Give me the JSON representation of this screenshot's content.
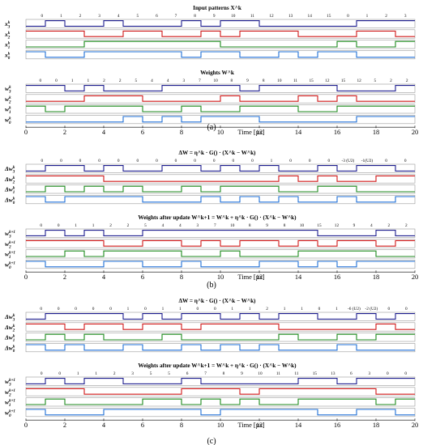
{
  "colors": {
    "b3": "#1f1f8f",
    "b2": "#d01818",
    "b1": "#1c8a1c",
    "b0": "#1f6fd6"
  },
  "x_axis": {
    "ticks": [
      "0",
      "2",
      "4",
      "6",
      "8",
      "10",
      "12",
      "14",
      "16",
      "18",
      "20"
    ],
    "unit_label": "Time [µs]",
    "range": [
      0,
      20
    ]
  },
  "panels": [
    {
      "caption": "(a)",
      "groups": [
        {
          "title": "Input patterns X^k",
          "values": [
            "0",
            "1",
            "2",
            "3",
            "4",
            "5",
            "6",
            "7",
            "8",
            "9",
            "10",
            "11",
            "12",
            "13",
            "14",
            "15",
            "0",
            "1",
            "2",
            "3"
          ],
          "rows": [
            {
              "label": "x3^k",
              "color": "b3"
            },
            {
              "label": "x2^k",
              "color": "b2"
            },
            {
              "label": "x1^k",
              "color": "b1"
            },
            {
              "label": "x0^k",
              "color": "b0"
            }
          ]
        },
        {
          "title": "Weights W^k",
          "values": [
            "0",
            "0",
            "1",
            "1",
            "2",
            "2",
            "5",
            "4",
            "4",
            "3",
            "7",
            "10",
            "8",
            "9",
            "8",
            "10",
            "11",
            "15",
            "12",
            "15",
            "12",
            "5",
            "2",
            "2"
          ],
          "rows": [
            {
              "label": "w3^k",
              "color": "b3"
            },
            {
              "label": "w2^k",
              "color": "b2"
            },
            {
              "label": "w1^k",
              "color": "b1"
            },
            {
              "label": "w0^k",
              "color": "b0"
            }
          ]
        }
      ]
    },
    {
      "caption": "(b)",
      "groups": [
        {
          "title": "ΔW = η^k · G() · (X^k − W^k)",
          "values": [
            "0",
            "0",
            "0",
            "0",
            "0",
            "0",
            "0",
            "0",
            "0",
            "0",
            "0",
            "0",
            "1",
            "0",
            "0",
            "0",
            "-3 (U2)",
            "-1(U2)",
            "0",
            "0"
          ],
          "rows": [
            {
              "label": "Δw3^k",
              "color": "b3"
            },
            {
              "label": "Δw2^k",
              "color": "b2"
            },
            {
              "label": "Δw1^k",
              "color": "b1"
            },
            {
              "label": "Δw0^k",
              "color": "b0"
            }
          ]
        },
        {
          "title": "Weights after update  W^k+1 = W^k + η^k · G() · (X^k − W^k)",
          "values": [
            "0",
            "0",
            "1",
            "1",
            "2",
            "2",
            "5",
            "4",
            "4",
            "3",
            "7",
            "10",
            "8",
            "9",
            "8",
            "10",
            "15",
            "12",
            "9",
            "4",
            "2",
            "2"
          ],
          "rows": [
            {
              "label": "w3^k+1",
              "color": "b3"
            },
            {
              "label": "w2^k+1",
              "color": "b2"
            },
            {
              "label": "w1^k+1",
              "color": "b1"
            },
            {
              "label": "w0^k+1",
              "color": "b0"
            }
          ]
        }
      ]
    },
    {
      "caption": "(c)",
      "groups": [
        {
          "title": "ΔW = η^k · G() · (X^k − W^k)",
          "values": [
            "0",
            "0",
            "0",
            "0",
            "0",
            "1",
            "0",
            "1",
            "1",
            "0",
            "0",
            "1",
            "1",
            "2",
            "1",
            "1",
            "0",
            "1",
            "-6 (U2)",
            "-2 (U2)",
            "0",
            "0"
          ],
          "rows": [
            {
              "label": "Δw3^k",
              "color": "b3"
            },
            {
              "label": "Δw2^k",
              "color": "b2"
            },
            {
              "label": "Δw1^k",
              "color": "b1"
            },
            {
              "label": "Δw0^k",
              "color": "b0"
            }
          ]
        },
        {
          "title": "Weights after update  W^k+1 = W^k + η^k · G() · (X^k − W^k)",
          "values": [
            "0",
            "0",
            "1",
            "1",
            "2",
            "3",
            "5",
            "5",
            "6",
            "7",
            "8",
            "9",
            "10",
            "11",
            "11",
            "15",
            "13",
            "6",
            "3",
            "0",
            "0"
          ],
          "rows": [
            {
              "label": "w3^k+1",
              "color": "b3"
            },
            {
              "label": "w2^k+1",
              "color": "b2"
            },
            {
              "label": "w1^k+1",
              "color": "b1"
            },
            {
              "label": "w0^k+1",
              "color": "b0"
            }
          ]
        }
      ]
    }
  ]
}
